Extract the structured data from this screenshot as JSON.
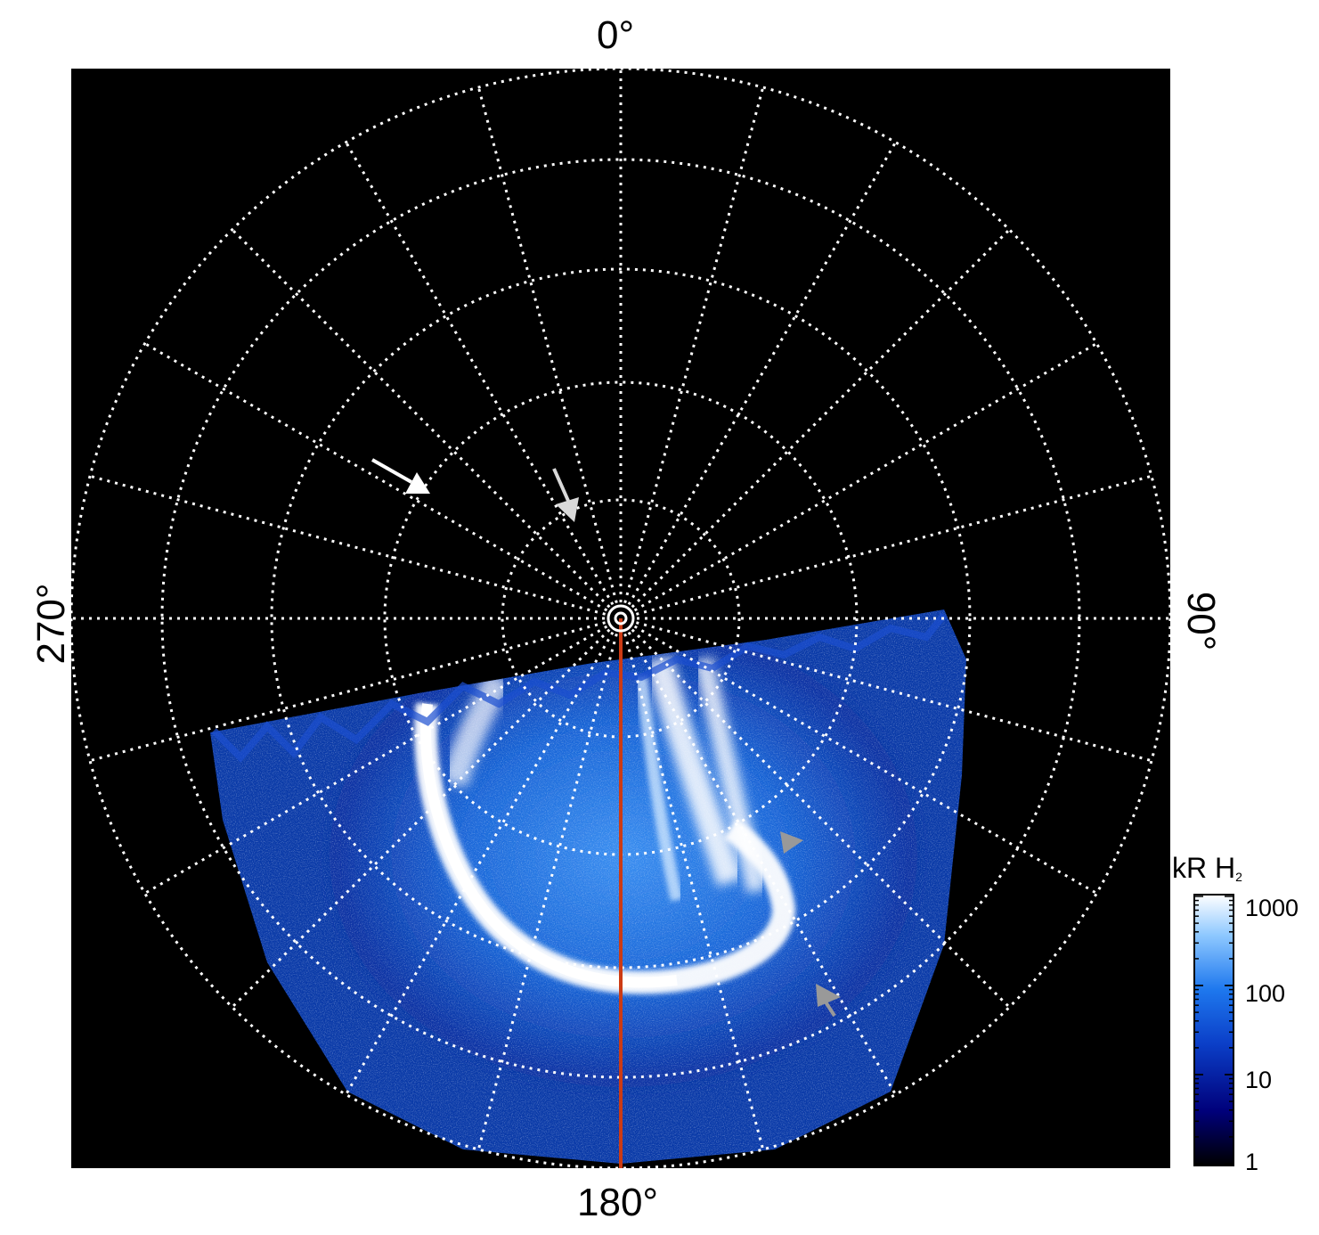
{
  "figure": {
    "labels": {
      "top": "0°",
      "right": "90°",
      "bottom": "180°",
      "left": "270°"
    },
    "colorbar": {
      "unit": "kR",
      "species": "H",
      "species_subscript": "2",
      "ticks": [
        "1000",
        "100",
        "10",
        "1"
      ],
      "scale": "log",
      "range": [
        1,
        1000
      ],
      "colors": [
        "#000000",
        "#00007a",
        "#0b3fc8",
        "#1e78ee",
        "#8ec8ff",
        "#ffffff"
      ]
    },
    "colors": {
      "background": "#000000",
      "grid": "#ffffff",
      "meridian_line": "#cc3b14",
      "arrow_white": "#ffffff",
      "arrow_grey": "#999999"
    },
    "annotations": [
      {
        "name": "white-arrow",
        "color": "white"
      },
      {
        "name": "light-grey-arrow",
        "color": "light grey"
      },
      {
        "name": "grey-arrowhead-upper",
        "color": "grey"
      },
      {
        "name": "grey-arrowhead-lower",
        "color": "grey"
      }
    ]
  }
}
